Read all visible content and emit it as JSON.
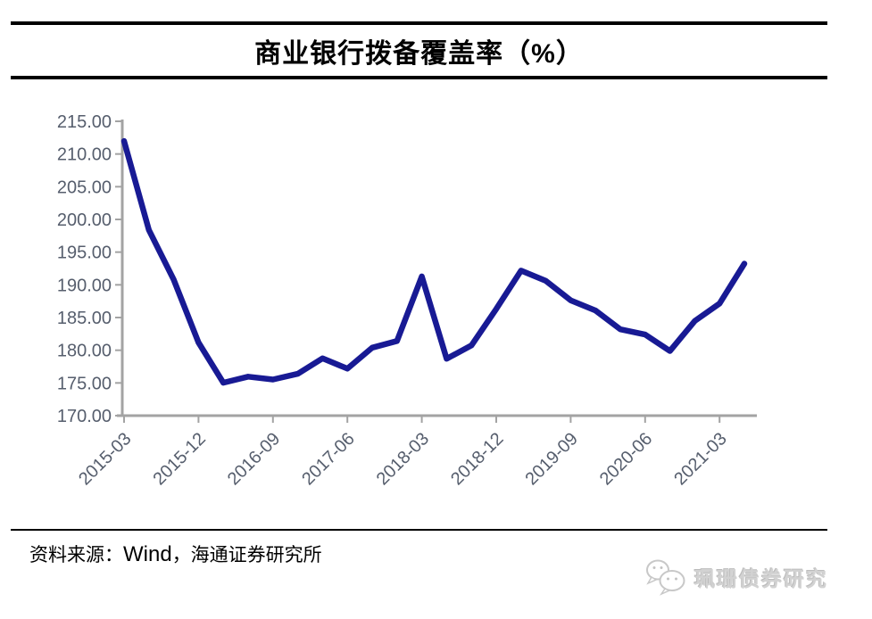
{
  "header": {
    "title": "商业银行拨备覆盖率（%）"
  },
  "chart_data": {
    "type": "line",
    "title": "商业银行拨备覆盖率（%）",
    "series_name": "商业银行拨备覆盖率",
    "xlabel": "",
    "ylabel": "",
    "grid": false,
    "legend_position": "none",
    "line_color": "#181a94",
    "axis_color": "#a3a3a3",
    "tick_label_color": "#565e6d",
    "ylim": [
      170,
      215
    ],
    "y_ticks": [
      "215.00",
      "210.00",
      "205.00",
      "200.00",
      "195.00",
      "190.00",
      "185.00",
      "180.00",
      "175.00",
      "170.00"
    ],
    "x": [
      "2015-03",
      "2015-06",
      "2015-09",
      "2015-12",
      "2016-03",
      "2016-06",
      "2016-09",
      "2016-12",
      "2017-03",
      "2017-06",
      "2017-09",
      "2017-12",
      "2018-03",
      "2018-06",
      "2018-09",
      "2018-12",
      "2019-03",
      "2019-06",
      "2019-09",
      "2019-12",
      "2020-03",
      "2020-06",
      "2020-09",
      "2020-12",
      "2021-03",
      "2021-06"
    ],
    "values": [
      211.98,
      198.39,
      190.79,
      181.18,
      175.03,
      175.96,
      175.52,
      176.4,
      178.76,
      177.18,
      180.39,
      181.42,
      191.28,
      178.7,
      180.73,
      186.31,
      192.17,
      190.61,
      187.63,
      186.08,
      183.2,
      182.4,
      179.89,
      184.47,
      187.14,
      193.23
    ],
    "x_tick_labels": [
      "2015-03",
      "2015-12",
      "2016-09",
      "2017-06",
      "2018-03",
      "2018-12",
      "2019-09",
      "2020-06",
      "2021-03"
    ]
  },
  "footer": {
    "source_prefix": "资料来源：",
    "source_name": "Wind",
    "source_suffix": "，海通证券研究所"
  },
  "watermark": {
    "label": "珮珊债券研究",
    "icon": "wechat-icon"
  }
}
